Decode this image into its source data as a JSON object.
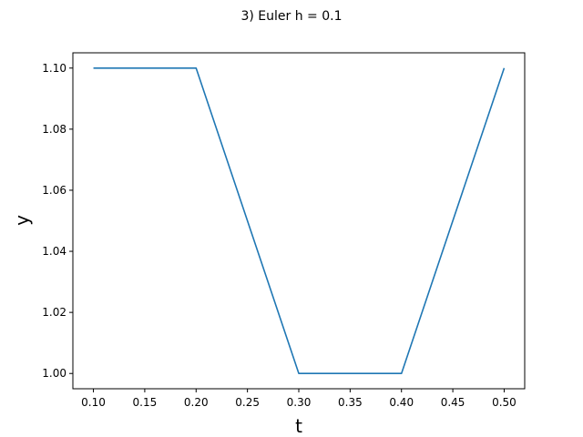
{
  "chart_data": {
    "type": "line",
    "title": "3) Euler h = 0.1",
    "xlabel": "t",
    "ylabel": "y",
    "xlim": [
      0.08,
      0.52
    ],
    "ylim": [
      0.995,
      1.105
    ],
    "x_ticks": [
      0.1,
      0.15,
      0.2,
      0.25,
      0.3,
      0.35,
      0.4,
      0.45,
      0.5
    ],
    "x_tick_labels": [
      "0.10",
      "0.15",
      "0.20",
      "0.25",
      "0.30",
      "0.35",
      "0.40",
      "0.45",
      "0.50"
    ],
    "y_ticks": [
      1.0,
      1.02,
      1.04,
      1.06,
      1.08,
      1.1
    ],
    "y_tick_labels": [
      "1.00",
      "1.02",
      "1.04",
      "1.06",
      "1.08",
      "1.10"
    ],
    "grid": false,
    "series": [
      {
        "x": [
          0.1,
          0.2,
          0.3,
          0.4,
          0.5
        ],
        "y": [
          1.1,
          1.1,
          1.0,
          1.0,
          1.1
        ],
        "color": "#1f77b4"
      }
    ]
  }
}
